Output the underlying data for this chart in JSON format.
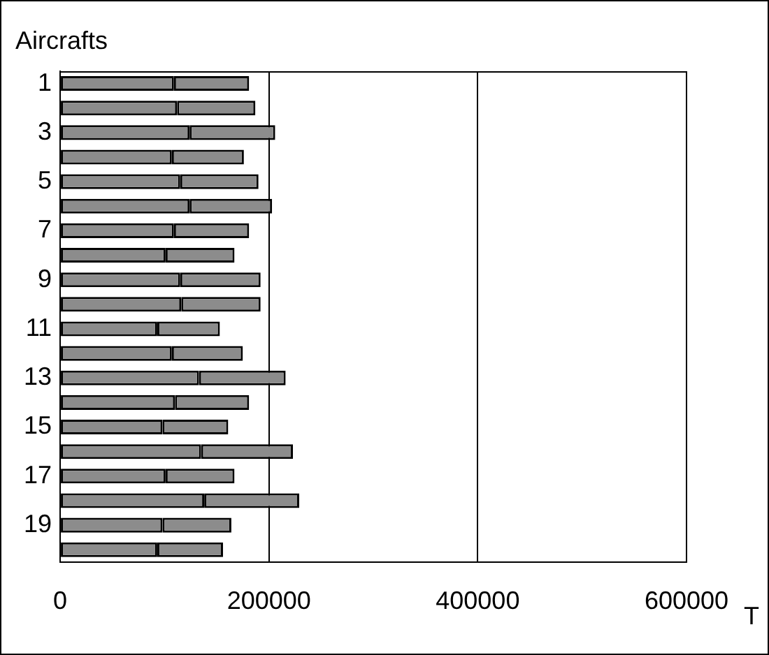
{
  "chart_data": {
    "type": "bar",
    "orientation": "horizontal",
    "stacked": true,
    "ylabel": "Aircrafts",
    "xlabel": "T",
    "categories": [
      "1",
      null,
      "3",
      null,
      "5",
      null,
      "7",
      null,
      "9",
      null,
      "11",
      null,
      "13",
      null,
      "15",
      null,
      "17",
      null,
      "19",
      null
    ],
    "series": [
      {
        "color": "#8c8c8c",
        "values": [
          109000,
          112000,
          124000,
          107000,
          115000,
          124000,
          109000,
          101000,
          115000,
          116000,
          93000,
          107000,
          133000,
          110000,
          98000,
          135000,
          101000,
          138000,
          98000,
          93000
        ]
      },
      {
        "color": "#8c8c8c",
        "values": [
          72000,
          75000,
          82000,
          69000,
          75000,
          79000,
          72000,
          66000,
          77000,
          76000,
          60000,
          68000,
          83000,
          71000,
          63000,
          88000,
          66000,
          91000,
          66000,
          63000
        ]
      }
    ],
    "xlim": [
      0,
      600000
    ],
    "xticks": [
      0,
      200000,
      400000,
      600000
    ],
    "grid": "x",
    "legend": false
  }
}
